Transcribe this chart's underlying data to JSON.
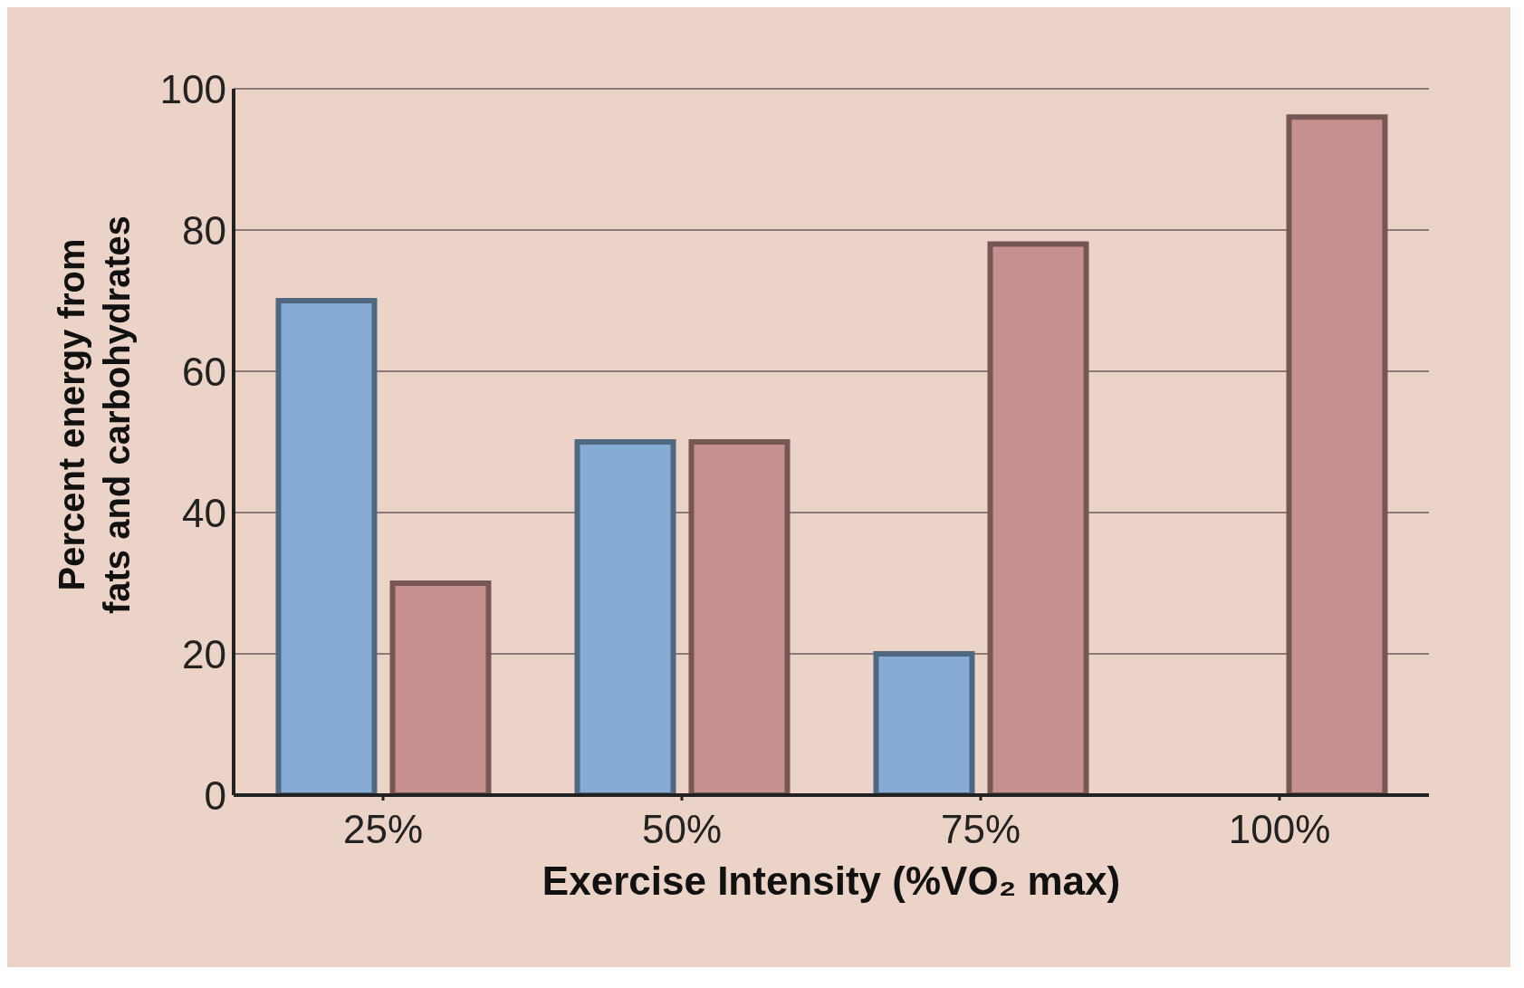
{
  "chart_data": {
    "type": "bar",
    "xlabel": "Exercise Intensity (%VO₂ max)",
    "ylabel": "Percent energy from\nfats and carbohydrates",
    "categories": [
      "25%",
      "50%",
      "75%",
      "100%"
    ],
    "series": [
      {
        "color": "#86acd6",
        "values": [
          70,
          50,
          20,
          0
        ]
      },
      {
        "color": "#c6908f",
        "values": [
          30,
          50,
          78,
          96
        ]
      }
    ],
    "ylim": [
      0,
      100
    ],
    "yticks": [
      0,
      20,
      40,
      60,
      80,
      100
    ],
    "grid": "y"
  }
}
